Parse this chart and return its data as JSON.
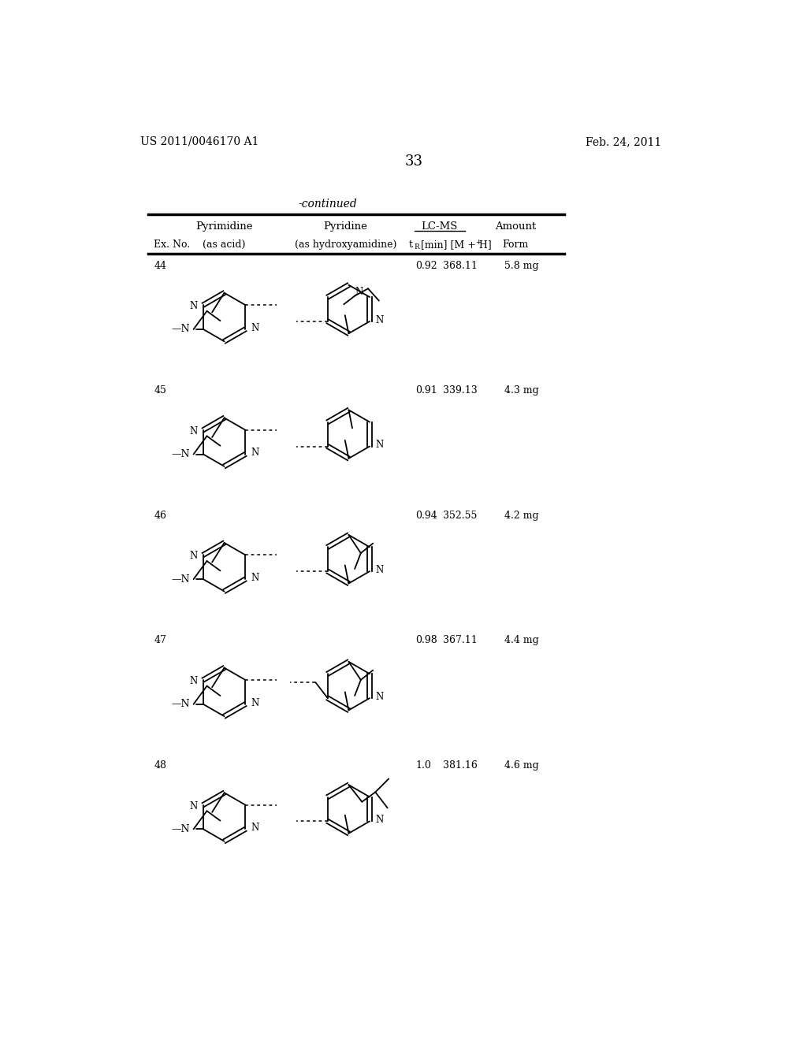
{
  "page_header_left": "US 2011/0046170 A1",
  "page_header_right": "Feb. 24, 2011",
  "page_number": "33",
  "table_title": "-continued",
  "rows": [
    {
      "ex_no": "44",
      "lcms_tr": "0.92",
      "lcms_mh": "368.11",
      "amount": "5.8 mg"
    },
    {
      "ex_no": "45",
      "lcms_tr": "0.91",
      "lcms_mh": "339.13",
      "amount": "4.3 mg"
    },
    {
      "ex_no": "46",
      "lcms_tr": "0.94",
      "lcms_mh": "352.55",
      "amount": "4.2 mg"
    },
    {
      "ex_no": "47",
      "lcms_tr": "0.98",
      "lcms_mh": "367.11",
      "amount": "4.4 mg"
    },
    {
      "ex_no": "48",
      "lcms_tr": "1.0",
      "lcms_mh": "381.16",
      "amount": "4.6 mg"
    }
  ]
}
